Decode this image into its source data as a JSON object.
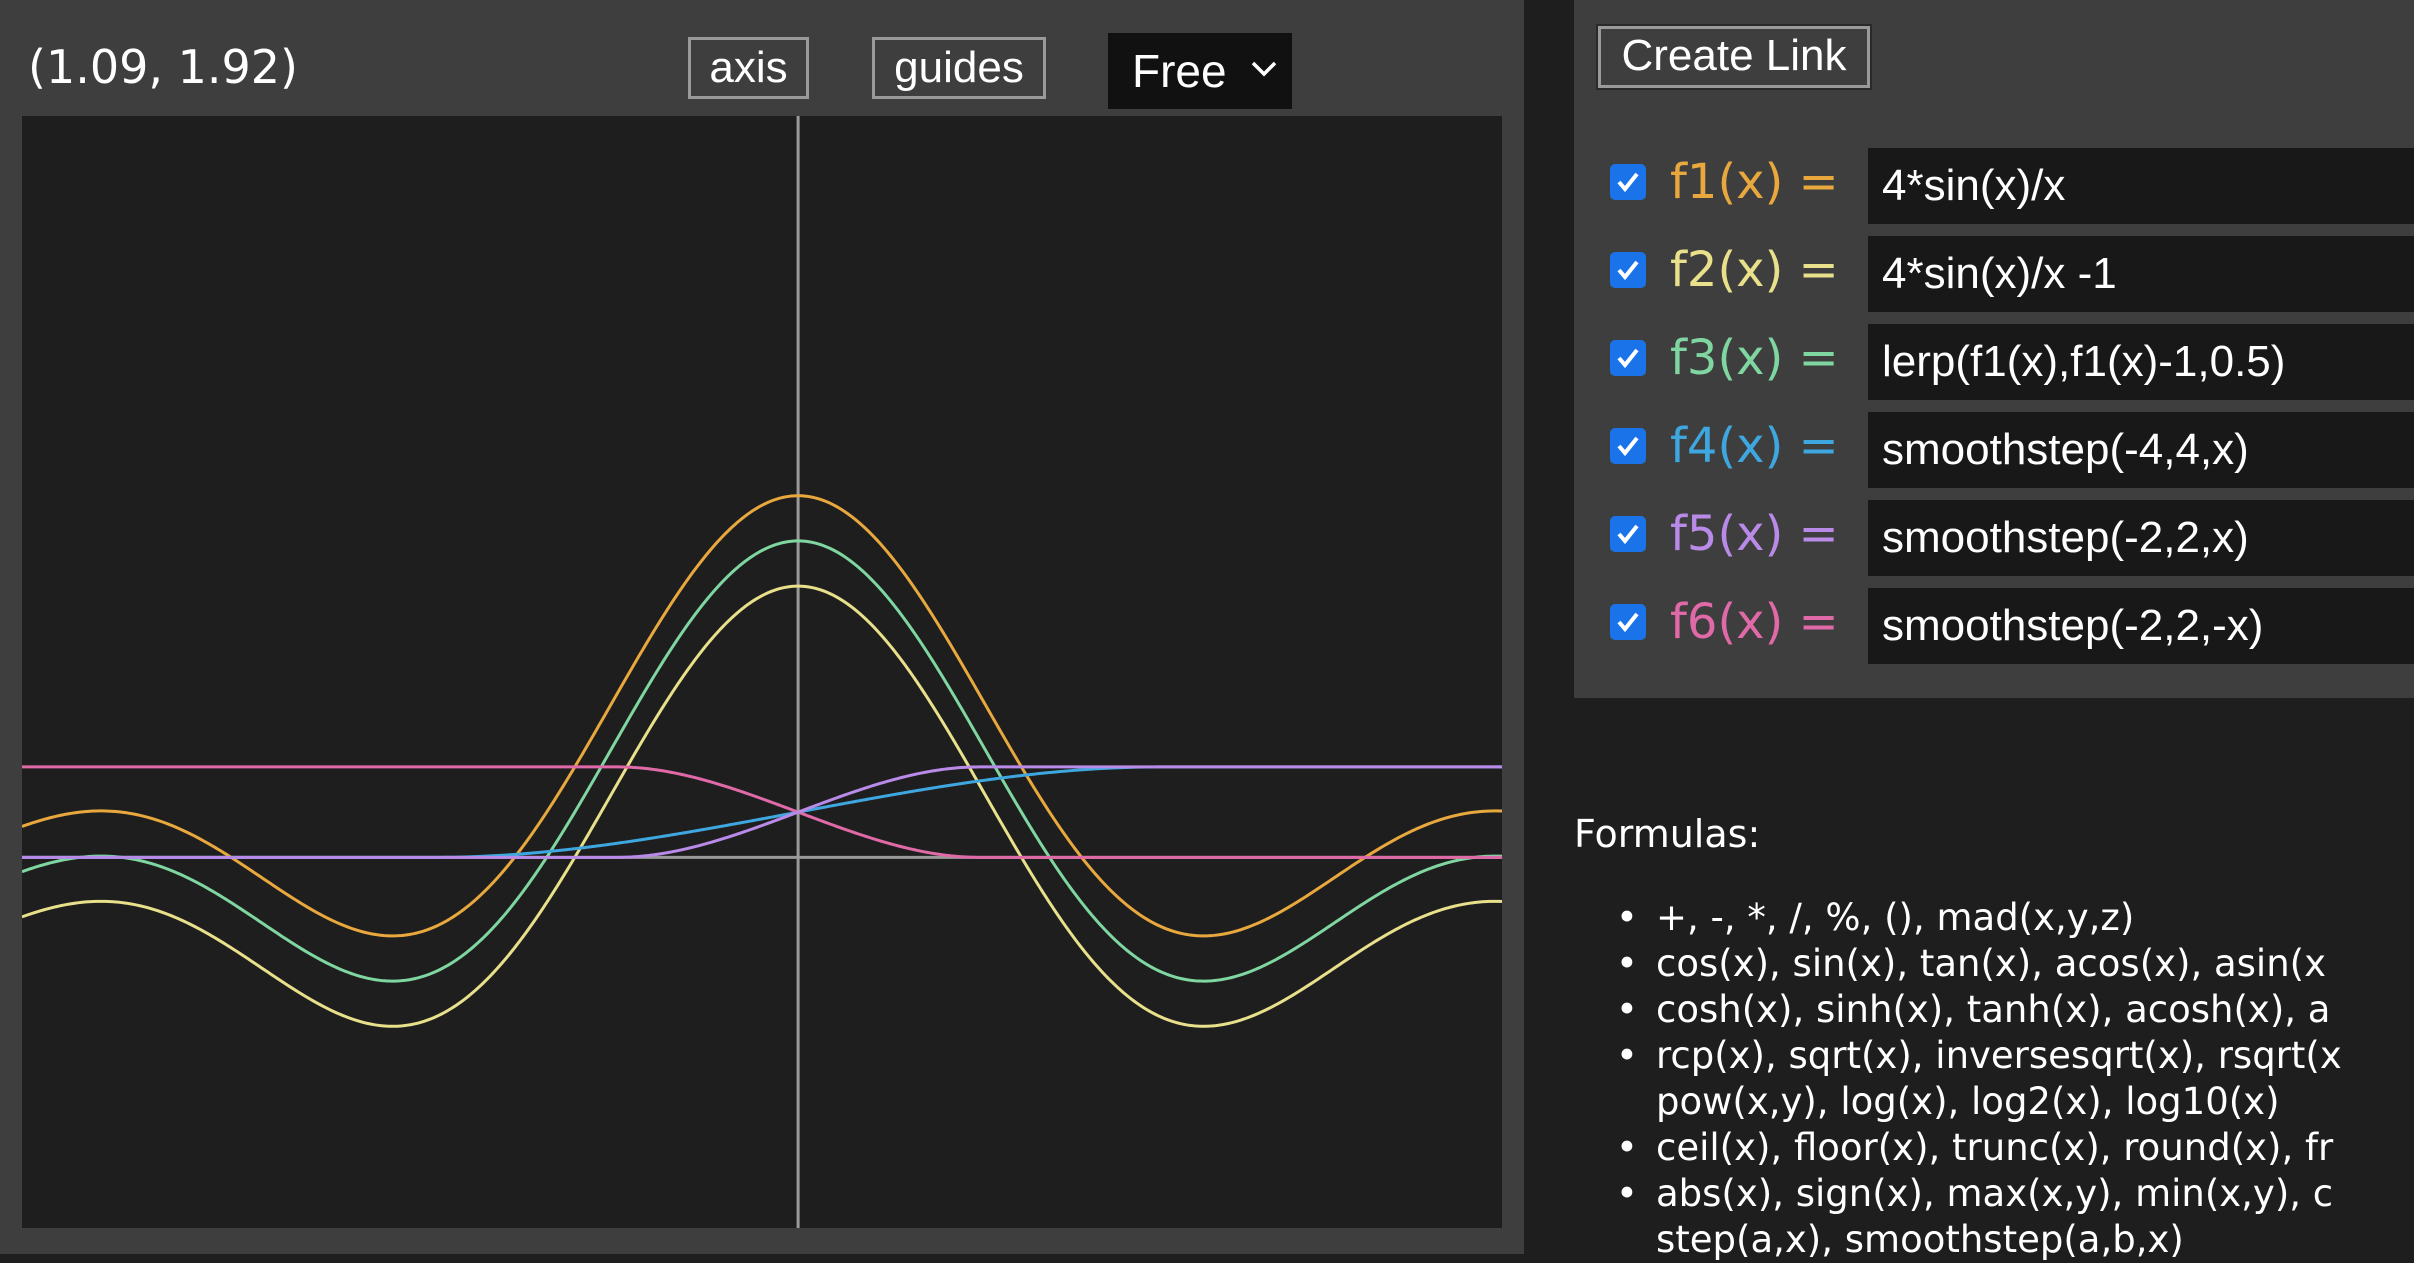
{
  "coordinate_readout": "(1.09, 1.92)",
  "toolbar": {
    "axis_label": "axis",
    "guides_label": "guides",
    "mode_value": "Free"
  },
  "create_link_label": "Create Link",
  "functions": [
    {
      "name": "f1(x) =",
      "expression": "4*sin(x)/x",
      "checked": true,
      "color": "#e8a83e"
    },
    {
      "name": "f2(x) =",
      "expression": "4*sin(x)/x -1",
      "checked": true,
      "color": "#e8e08a"
    },
    {
      "name": "f3(x) =",
      "expression": "lerp(f1(x),f1(x)-1,0.5)",
      "checked": true,
      "color": "#7fd6a0"
    },
    {
      "name": "f4(x) =",
      "expression": "smoothstep(-4,4,x)",
      "checked": true,
      "color": "#3fa7e0"
    },
    {
      "name": "f5(x) =",
      "expression": "smoothstep(-2,2,x)",
      "checked": true,
      "color": "#b98ae8"
    },
    {
      "name": "f6(x) =",
      "expression": "smoothstep(-2,2,-x)",
      "checked": true,
      "color": "#e06aa8"
    }
  ],
  "formulas_heading": "Formulas:",
  "formulas": [
    [
      "+, -, *, /, %, (), mad(x,y,z)"
    ],
    [
      "cos(x), sin(x), tan(x), acos(x), asin(x"
    ],
    [
      "cosh(x), sinh(x), tanh(x), acosh(x), a"
    ],
    [
      "rcp(x), sqrt(x), inversesqrt(x), rsqrt(x",
      "pow(x,y), log(x), log2(x), log10(x)"
    ],
    [
      "ceil(x), floor(x), trunc(x), round(x), fr"
    ],
    [
      "abs(x), sign(x), max(x,y), min(x,y), c",
      "step(a,x), smoothstep(a,b,x)"
    ]
  ],
  "graph": {
    "axis_color": "#9a9a9a",
    "x_range": [
      -8.6,
      7.8
    ],
    "y_range": [
      -4.1,
      8.2
    ]
  }
}
